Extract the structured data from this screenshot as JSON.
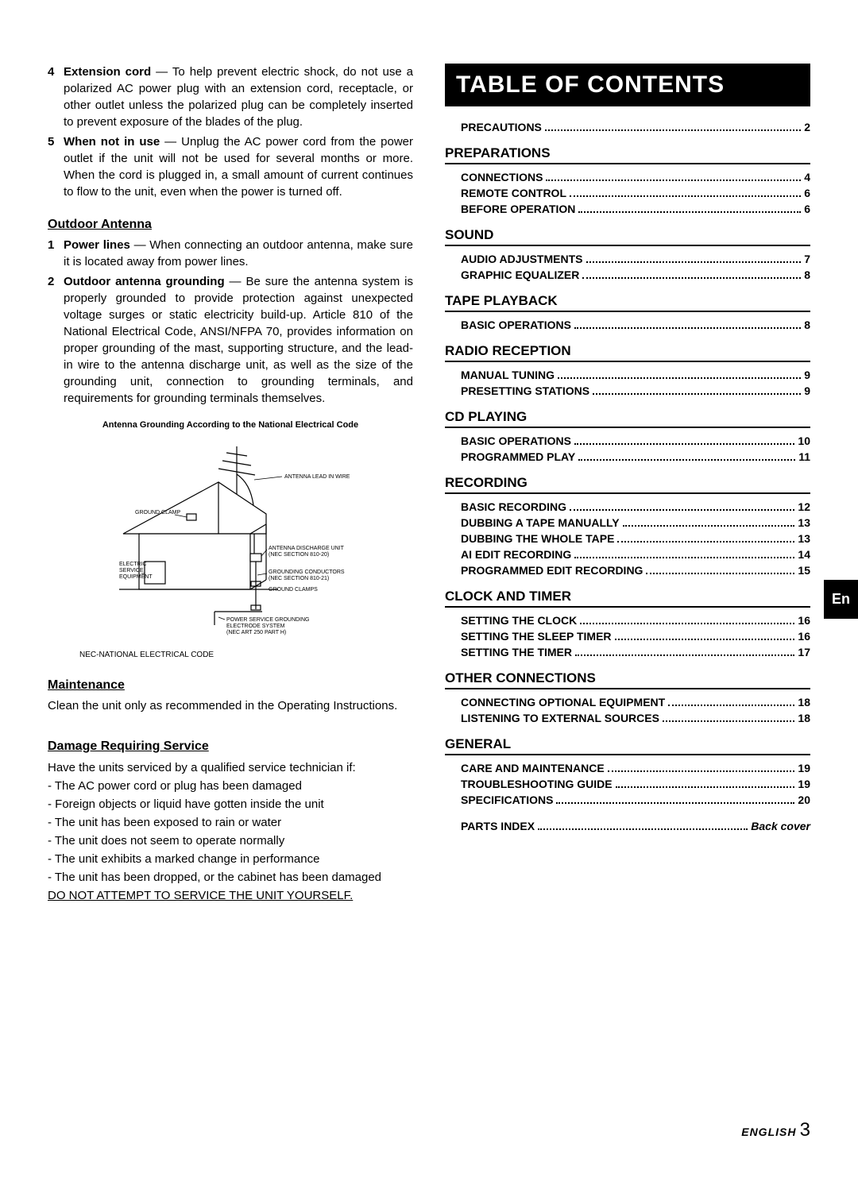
{
  "left": {
    "item4": {
      "num": "4",
      "label": "Extension cord",
      "text": " — To help prevent electric shock, do not use a polarized AC power plug with an extension cord, receptacle, or other outlet unless the polarized plug can be completely inserted to prevent exposure of the blades of the plug."
    },
    "item5": {
      "num": "5",
      "label": "When not in use",
      "text": " — Unplug the AC power cord from the power outlet if the unit will not be used for several months or more. When the cord is plugged in, a small amount of current continues to flow to the unit, even when the power is turned off."
    },
    "outdoor_heading": "Outdoor Antenna",
    "outdoor1": {
      "num": "1",
      "label": "Power lines",
      "text": " — When connecting an outdoor antenna, make sure it is located away from power lines."
    },
    "outdoor2": {
      "num": "2",
      "label": "Outdoor antenna grounding",
      "text": " — Be sure the antenna system is properly grounded to provide protection against unexpected voltage surges or static electricity build-up. Article 810 of the National Electrical Code, ANSI/NFPA 70, provides information on proper grounding of the mast, supporting structure, and the lead-in wire to the antenna discharge unit, as well as the size of the grounding unit, connection to grounding terminals, and requirements for grounding terminals themselves."
    },
    "diagram_caption": "Antenna Grounding According to the National Electrical Code",
    "diagram_labels": {
      "lead_in": "ANTENNA LEAD IN WIRE",
      "ground_clamp": "GROUND CLAMP",
      "discharge": "ANTENNA DISCHARGE UNIT",
      "discharge_nec": "(NEC SECTION 810-20)",
      "electric": "ELECTRIC\nSERVICE\nEQUIPMENT",
      "conductors": "GROUNDING CONDUCTORS",
      "conductors_nec": "(NEC SECTION 810-21)",
      "clamps": "GROUND CLAMPS",
      "electrode": "POWER SERVICE GROUNDING\nELECTRODE SYSTEM",
      "electrode_nec": "(NEC ART 250 PART H)"
    },
    "diagram_note": "NEC-NATIONAL ELECTRICAL CODE",
    "maintenance_heading": "Maintenance",
    "maintenance_text": "Clean the unit only as recommended in the Operating Instructions.",
    "damage_heading": "Damage Requiring Service",
    "damage_intro": "Have the units serviced by a qualified service technician if:",
    "damage_items": [
      "- The AC power cord or plug has been damaged",
      "- Foreign objects or liquid have gotten inside the unit",
      "- The unit has been exposed to rain or water",
      "- The unit does not seem to operate normally",
      "- The unit exhibits a marked change in performance",
      "- The unit has been dropped, or the cabinet has been damaged"
    ],
    "no_service": "DO NOT ATTEMPT TO SERVICE THE UNIT YOURSELF."
  },
  "toc": {
    "banner": "TABLE OF CONTENTS",
    "precautions": {
      "label": "PRECAUTIONS",
      "page": "2"
    },
    "sections": [
      {
        "title": "PREPARATIONS",
        "items": [
          {
            "label": "CONNECTIONS",
            "page": "4"
          },
          {
            "label": "REMOTE CONTROL",
            "page": "6"
          },
          {
            "label": "BEFORE OPERATION",
            "page": "6"
          }
        ]
      },
      {
        "title": "SOUND",
        "items": [
          {
            "label": "AUDIO ADJUSTMENTS",
            "page": "7"
          },
          {
            "label": "GRAPHIC EQUALIZER",
            "page": "8"
          }
        ]
      },
      {
        "title": "TAPE PLAYBACK",
        "items": [
          {
            "label": "BASIC OPERATIONS",
            "page": "8"
          }
        ]
      },
      {
        "title": "RADIO RECEPTION",
        "items": [
          {
            "label": "MANUAL TUNING",
            "page": "9"
          },
          {
            "label": "PRESETTING STATIONS",
            "page": "9"
          }
        ]
      },
      {
        "title": "CD PLAYING",
        "items": [
          {
            "label": "BASIC OPERATIONS",
            "page": "10"
          },
          {
            "label": "PROGRAMMED PLAY",
            "page": "11"
          }
        ]
      },
      {
        "title": "RECORDING",
        "items": [
          {
            "label": "BASIC RECORDING",
            "page": "12"
          },
          {
            "label": "DUBBING A TAPE MANUALLY",
            "page": "13"
          },
          {
            "label": "DUBBING THE WHOLE TAPE",
            "page": "13"
          },
          {
            "label": "AI EDIT RECORDING",
            "page": "14"
          },
          {
            "label": "PROGRAMMED EDIT RECORDING",
            "page": "15"
          }
        ]
      },
      {
        "title": "CLOCK AND TIMER",
        "items": [
          {
            "label": "SETTING THE CLOCK",
            "page": "16"
          },
          {
            "label": "SETTING THE SLEEP TIMER",
            "page": "16"
          },
          {
            "label": "SETTING THE TIMER",
            "page": "17"
          }
        ]
      },
      {
        "title": "OTHER CONNECTIONS",
        "items": [
          {
            "label": "CONNECTING OPTIONAL EQUIPMENT",
            "page": "18"
          },
          {
            "label": "LISTENING TO EXTERNAL SOURCES",
            "page": "18"
          }
        ]
      },
      {
        "title": "GENERAL",
        "items": [
          {
            "label": "CARE AND MAINTENANCE",
            "page": "19"
          },
          {
            "label": "TROUBLESHOOTING GUIDE",
            "page": "19"
          },
          {
            "label": "SPECIFICATIONS",
            "page": "20"
          }
        ]
      }
    ],
    "parts_index": {
      "label": "PARTS INDEX",
      "page": "Back cover"
    }
  },
  "en_tab": "En",
  "footer": {
    "lang": "ENGLISH",
    "num": "3"
  },
  "colors": {
    "black": "#000000",
    "white": "#ffffff"
  }
}
